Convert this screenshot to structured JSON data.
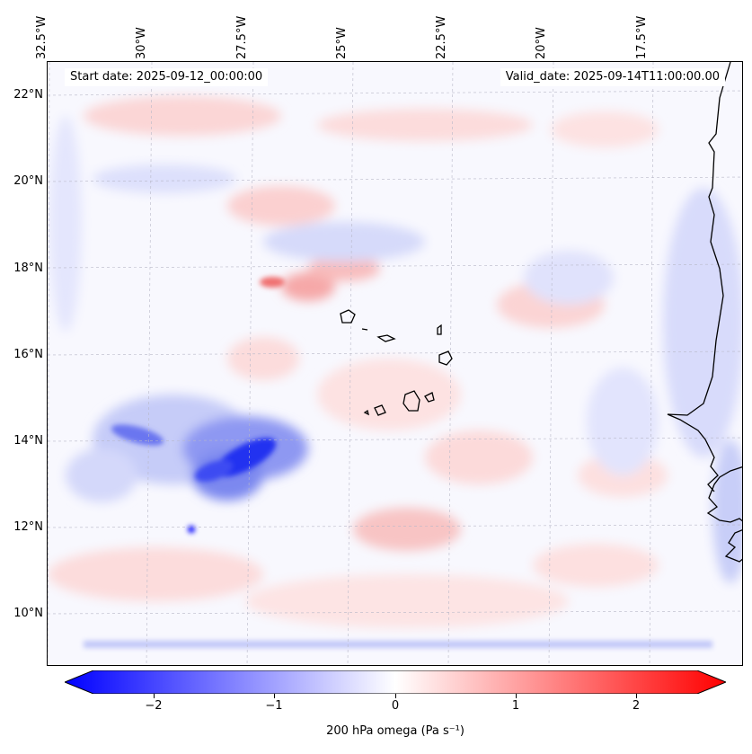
{
  "map": {
    "lon_labels": [
      "32.5°W",
      "30°W",
      "27.5°W",
      "25°W",
      "22.5°W",
      "20°W",
      "17.5°W"
    ],
    "lat_labels": [
      "22°N",
      "20°N",
      "18°N",
      "16°N",
      "14°N",
      "12°N",
      "10°N"
    ],
    "start_date": "Start date: 2025-09-12_00:00:00",
    "valid_date": "Valid_date: 2025-09-14T11:00:00.00",
    "variable": "200 hPa omega",
    "units": "Pa s⁻¹",
    "colormap": "bwr",
    "colors": {
      "min": "#0000ff",
      "mid": "#ffffff",
      "max": "#ff0000",
      "coast": "#000000",
      "grid": "#b0b0b0"
    }
  },
  "colorbar": {
    "label": "200 hPa omega (Pa s⁻¹)",
    "ticks": [
      "−2",
      "−1",
      "0",
      "1",
      "2"
    ],
    "tick_values": [
      -2,
      -1,
      0,
      1,
      2
    ],
    "range": [
      -2.75,
      2.75
    ],
    "extend": "both"
  }
}
